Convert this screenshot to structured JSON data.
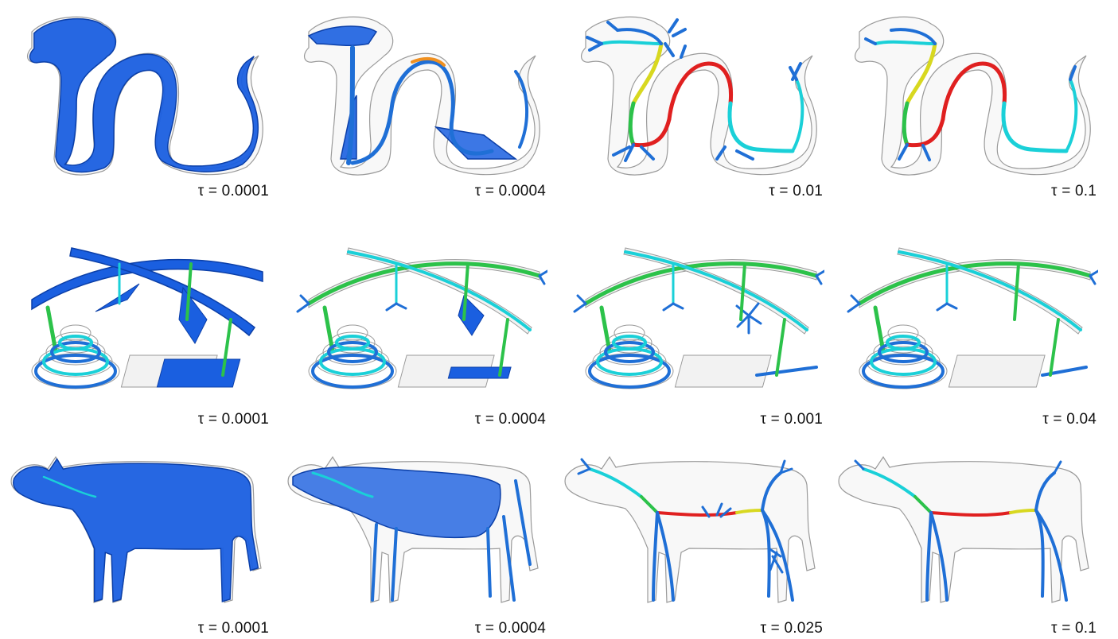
{
  "figure": {
    "rows": [
      {
        "subject": "dragon",
        "panels": [
          {
            "symbol": "τ",
            "value": "0.0001",
            "label": "τ = 0.0001",
            "stage": 0
          },
          {
            "symbol": "τ",
            "value": "0.0004",
            "label": "τ = 0.0004",
            "stage": 1
          },
          {
            "symbol": "τ",
            "value": "0.01",
            "label": "τ = 0.01",
            "stage": 2
          },
          {
            "symbol": "τ",
            "value": "0.1",
            "label": "τ = 0.1",
            "stage": 3
          }
        ]
      },
      {
        "subject": "mechanical-sculpture",
        "panels": [
          {
            "symbol": "τ",
            "value": "0.0001",
            "label": "τ = 0.0001",
            "stage": 0
          },
          {
            "symbol": "τ",
            "value": "0.0004",
            "label": "τ = 0.0004",
            "stage": 1
          },
          {
            "symbol": "τ",
            "value": "0.001",
            "label": "τ = 0.001",
            "stage": 2
          },
          {
            "symbol": "τ",
            "value": "0.04",
            "label": "τ = 0.04",
            "stage": 3
          }
        ]
      },
      {
        "subject": "cow",
        "panels": [
          {
            "symbol": "τ",
            "value": "0.0001",
            "label": "τ = 0.0001",
            "stage": 0
          },
          {
            "symbol": "τ",
            "value": "0.0004",
            "label": "τ = 0.0004",
            "stage": 1
          },
          {
            "symbol": "τ",
            "value": "0.025",
            "label": "τ = 0.025",
            "stage": 2
          },
          {
            "symbol": "τ",
            "value": "0.1",
            "label": "τ = 0.1",
            "stage": 3
          }
        ]
      }
    ],
    "colors": {
      "surface_fill": "#1a5fe0",
      "surface_edge": "#0b3fa8",
      "ghost_outline": "#9a9a9a",
      "ghost_fill": "#f2f2f2",
      "skeleton_blue": "#1f6fd6",
      "skeleton_cyan": "#1ad0d8",
      "skeleton_green": "#2cc24a",
      "skeleton_yellow": "#d8d820",
      "skeleton_orange": "#f09020",
      "skeleton_red": "#e02020"
    }
  }
}
